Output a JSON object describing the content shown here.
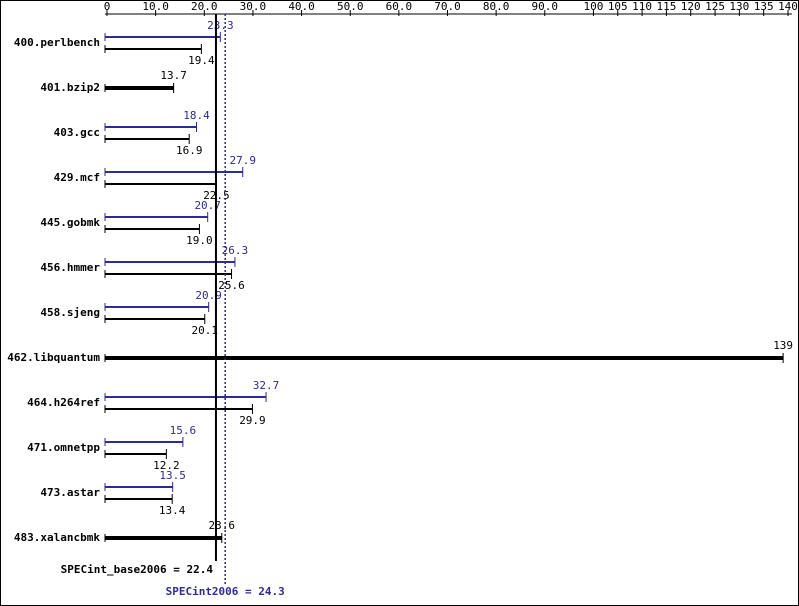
{
  "chart_data": {
    "type": "bar",
    "categories": [
      "400.perlbench",
      "401.bzip2",
      "403.gcc",
      "429.mcf",
      "445.gobmk",
      "456.hmmer",
      "458.sjeng",
      "462.libquantum",
      "464.h264ref",
      "471.omnetpp",
      "473.astar",
      "483.xalancbmk"
    ],
    "series": [
      {
        "color": "#2b2b9a",
        "values": [
          23.3,
          null,
          18.4,
          27.9,
          20.7,
          26.3,
          20.9,
          null,
          32.7,
          15.6,
          13.5,
          null
        ]
      },
      {
        "color": "#000000",
        "values": [
          19.4,
          13.7,
          16.9,
          22.5,
          19.0,
          25.6,
          20.1,
          139,
          29.9,
          12.2,
          13.4,
          23.6
        ],
        "value_labels": [
          "19.4",
          "13.7",
          "16.9",
          "22.5",
          "19.0",
          "25.6",
          "20.1",
          "139",
          "29.9",
          "12.2",
          "13.4",
          "23.6"
        ]
      }
    ],
    "xlim": [
      0,
      140
    ],
    "xticks": [
      0,
      {
        "value": 10,
        "label": "10.0"
      },
      {
        "value": 20,
        "label": "20.0"
      },
      {
        "value": 30,
        "label": "30.0"
      },
      {
        "value": 40,
        "label": "40.0"
      },
      {
        "value": 50,
        "label": "50.0"
      },
      {
        "value": 60,
        "label": "60.0"
      },
      {
        "value": 70,
        "label": "70.0"
      },
      {
        "value": 80,
        "label": "80.0"
      },
      {
        "value": 90,
        "label": "90.0"
      },
      100,
      105,
      110,
      115,
      120,
      125,
      130,
      135,
      140
    ],
    "reference_lines": [
      {
        "label": "SPECint_base2006 = 22.4",
        "value": 22.4,
        "color": "#000000"
      },
      {
        "label": "SPECint2006 = 24.3",
        "value": 24.3,
        "color": "#2b2b9a"
      }
    ]
  }
}
